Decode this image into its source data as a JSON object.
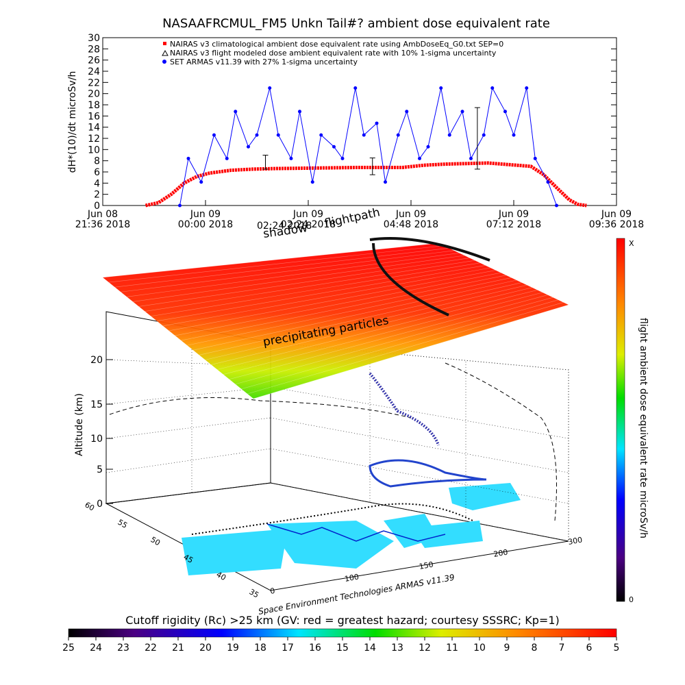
{
  "chart_data": [
    {
      "type": "line",
      "title": "NASAAFRCMUL_FM5 Unkn Tail#? ambient dose equivalent rate",
      "ylabel": "dH*(10)/dt microSv/h",
      "ylim": [
        0,
        30
      ],
      "y_ticks": [
        "0",
        "2",
        "4",
        "6",
        "8",
        "10",
        "12",
        "14",
        "16",
        "18",
        "20",
        "22",
        "24",
        "26",
        "28",
        "30"
      ],
      "x_ticks": [
        {
          "line1": "Jun 08",
          "line2": "21:36 2018"
        },
        {
          "line1": "Jun 09",
          "line2": "00:00 2018"
        },
        {
          "line1": "Jun 09",
          "line2": "02:24 2018"
        },
        {
          "line1": "Jun 09",
          "line2": "04:48 2018"
        },
        {
          "line1": "Jun 09",
          "line2": "07:12 2018"
        },
        {
          "line1": "Jun 09",
          "line2": "09:36 2018"
        }
      ],
      "xlim_hours_since_jun08_2136": [
        0,
        12
      ],
      "legend": [
        "NAIRAS v3 climatological ambient dose equivalent rate using AmbDoseEq_G0.txt SEP=0",
        "NAIRAS v3 flight modeled dose ambient equivalent rate with 10% 1-sigma uncertainty",
        "SET ARMAS v11.39 with 27% 1-sigma uncertainty"
      ],
      "legend_placement": "top-left",
      "series": [
        {
          "name": "NAIRAS v3 climatological ambient dose equivalent rate using AmbDoseEq_G0.txt SEP=0",
          "color": "#ff0000",
          "x": [
            1.0,
            1.3,
            1.6,
            1.9,
            2.2,
            2.5,
            3.0,
            3.5,
            4.0,
            5.0,
            6.0,
            7.0,
            7.5,
            8.0,
            9.0,
            10.0,
            10.3,
            10.6,
            10.9,
            11.1,
            11.3
          ],
          "values": [
            0.0,
            0.5,
            2.0,
            4.0,
            5.2,
            5.8,
            6.3,
            6.5,
            6.6,
            6.7,
            6.8,
            6.8,
            7.2,
            7.4,
            7.6,
            7.0,
            5.5,
            3.2,
            1.0,
            0.2,
            0.0
          ]
        },
        {
          "name": "SET ARMAS v11.39 with 27% 1-sigma uncertainty",
          "color": "#0000ff",
          "x": [
            1.8,
            2.0,
            2.3,
            2.6,
            2.9,
            3.1,
            3.4,
            3.6,
            3.9,
            4.1,
            4.4,
            4.6,
            4.9,
            5.1,
            5.4,
            5.6,
            5.9,
            6.1,
            6.4,
            6.6,
            6.9,
            7.1,
            7.4,
            7.6,
            7.9,
            8.1,
            8.4,
            8.6,
            8.9,
            9.1,
            9.4,
            9.6,
            9.9,
            10.1,
            10.4,
            10.6
          ],
          "values": [
            0,
            8.4,
            4.2,
            12.6,
            8.4,
            16.8,
            10.5,
            12.6,
            21.0,
            12.6,
            8.4,
            16.8,
            4.2,
            12.6,
            10.5,
            8.4,
            21.0,
            12.6,
            14.7,
            4.2,
            12.6,
            16.8,
            8.4,
            10.5,
            21.0,
            12.6,
            16.8,
            8.4,
            12.6,
            21.0,
            16.8,
            12.6,
            21.0,
            8.4,
            4.2,
            0
          ]
        }
      ],
      "error_bars_black": [
        {
          "x": 3.8,
          "low": 6.5,
          "high": 9.0
        },
        {
          "x": 6.3,
          "low": 5.5,
          "high": 8.5
        },
        {
          "x": 8.75,
          "low": 6.5,
          "high": 17.5
        }
      ]
    },
    {
      "type": "heatmap",
      "annotations": [
        "shadow",
        "flightpath",
        "precipitating particles",
        "02:24 2018"
      ],
      "zlabel": "Altitude (km)",
      "z_ticks": [
        "0",
        "5",
        "10",
        "15",
        "20"
      ],
      "lat_ticks": [
        "35",
        "40",
        "45",
        "50",
        "55",
        "60"
      ],
      "lon_ticks": [
        "0",
        "100",
        "150",
        "200",
        "300"
      ],
      "credit": "Space Environment Technologies ARMAS v11.39",
      "colorbar_right": {
        "label": "flight ambient dose equivalent rate microSv/h",
        "top": "X",
        "bottom": "0"
      },
      "colorbar_bottom": {
        "title": "Cutoff rigidity (Rc) >25 km (GV: red = greatest hazard; courtesy SSSRC; Kp=1)",
        "ticks": [
          "25",
          "24",
          "23",
          "22",
          "21",
          "20",
          "19",
          "18",
          "17",
          "16",
          "15",
          "14",
          "13",
          "12",
          "11",
          "10",
          "9",
          "8",
          "7",
          "6",
          "5"
        ]
      }
    }
  ]
}
